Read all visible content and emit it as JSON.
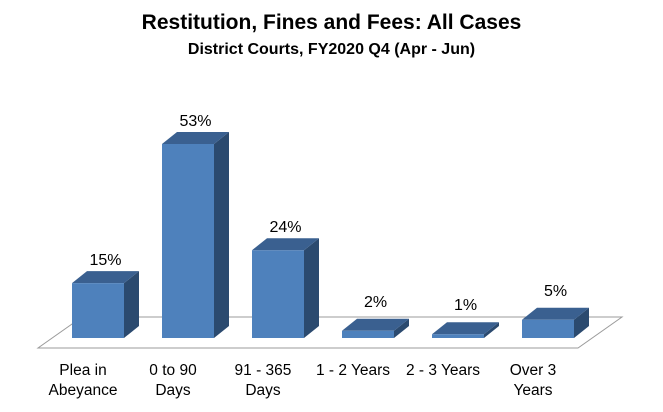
{
  "chart_data": {
    "type": "bar",
    "style": "3d-bar",
    "title": "Restitution, Fines and Fees: All Cases",
    "subtitle": "District Courts, FY2020 Q4 (Apr - Jun)",
    "categories": [
      "Plea in Abeyance",
      "0 to 90 Days",
      "91 - 365 Days",
      "1 - 2 Years",
      "2 - 3 Years",
      "Over 3 Years"
    ],
    "category_lines": [
      [
        "Plea in",
        "Abeyance"
      ],
      [
        "0 to 90",
        "Days"
      ],
      [
        "91 - 365",
        "Days"
      ],
      [
        "1 - 2 Years"
      ],
      [
        "2 - 3 Years"
      ],
      [
        "Over 3",
        "Years"
      ]
    ],
    "values": [
      15,
      53,
      24,
      2,
      1,
      5
    ],
    "value_labels": [
      "15%",
      "53%",
      "24%",
      "2%",
      "1%",
      "5%"
    ],
    "xlabel": "",
    "ylabel": "",
    "ylim": [
      0,
      55
    ],
    "value_axis_visible": false,
    "grid": false,
    "legend": false,
    "colors": {
      "bar_front": "#4E81BC",
      "bar_side": "#2B4A6F",
      "bar_top": "#3A6090",
      "floor_outline": "#9B9B9B",
      "floor_fill": "#FFFFFF",
      "text": "#000000",
      "background": "#FFFFFF"
    }
  }
}
